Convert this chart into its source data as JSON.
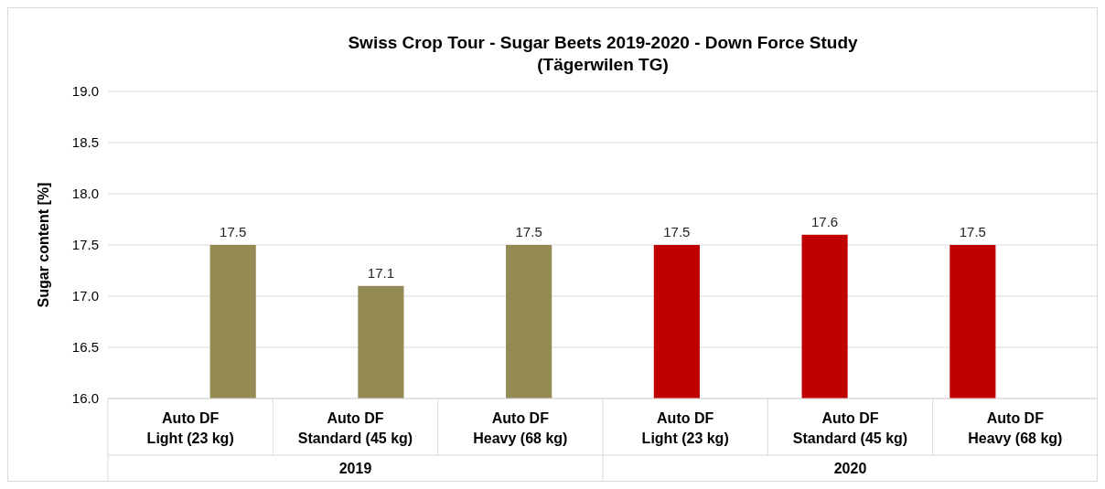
{
  "chart_data": {
    "type": "bar",
    "title": "Swiss Crop Tour - Sugar Beets 2019-2020 - Down Force Study",
    "subtitle": "(Tägerwilen TG)",
    "ylabel": "Sugar content [%]",
    "categories": [
      "Auto DF Light (23 kg)",
      "Auto DF Standard (45 kg)",
      "Auto DF Heavy (68 kg)",
      "Auto DF Light (23 kg)",
      "Auto DF Standard (45 kg)",
      "Auto DF Heavy (68 kg)"
    ],
    "values": [
      17.5,
      17.1,
      17.5,
      17.5,
      17.6,
      17.5
    ],
    "colors": [
      "#948a54",
      "#948a54",
      "#948a54",
      "#c00000",
      "#c00000",
      "#c00000"
    ],
    "annotations": [
      "2019",
      "2020"
    ],
    "ylim": [
      16,
      19
    ],
    "yticks": [
      {
        "value": 16,
        "label": "16.0"
      },
      {
        "value": 16.5,
        "label": "16.5"
      },
      {
        "value": 17,
        "label": "17.0"
      },
      {
        "value": 17.5,
        "label": "17.5"
      },
      {
        "value": 18,
        "label": "18.0"
      },
      {
        "value": 18.5,
        "label": "18.5"
      },
      {
        "value": 19,
        "label": "19.0"
      }
    ],
    "grid": "y",
    "data_labels": true
  }
}
